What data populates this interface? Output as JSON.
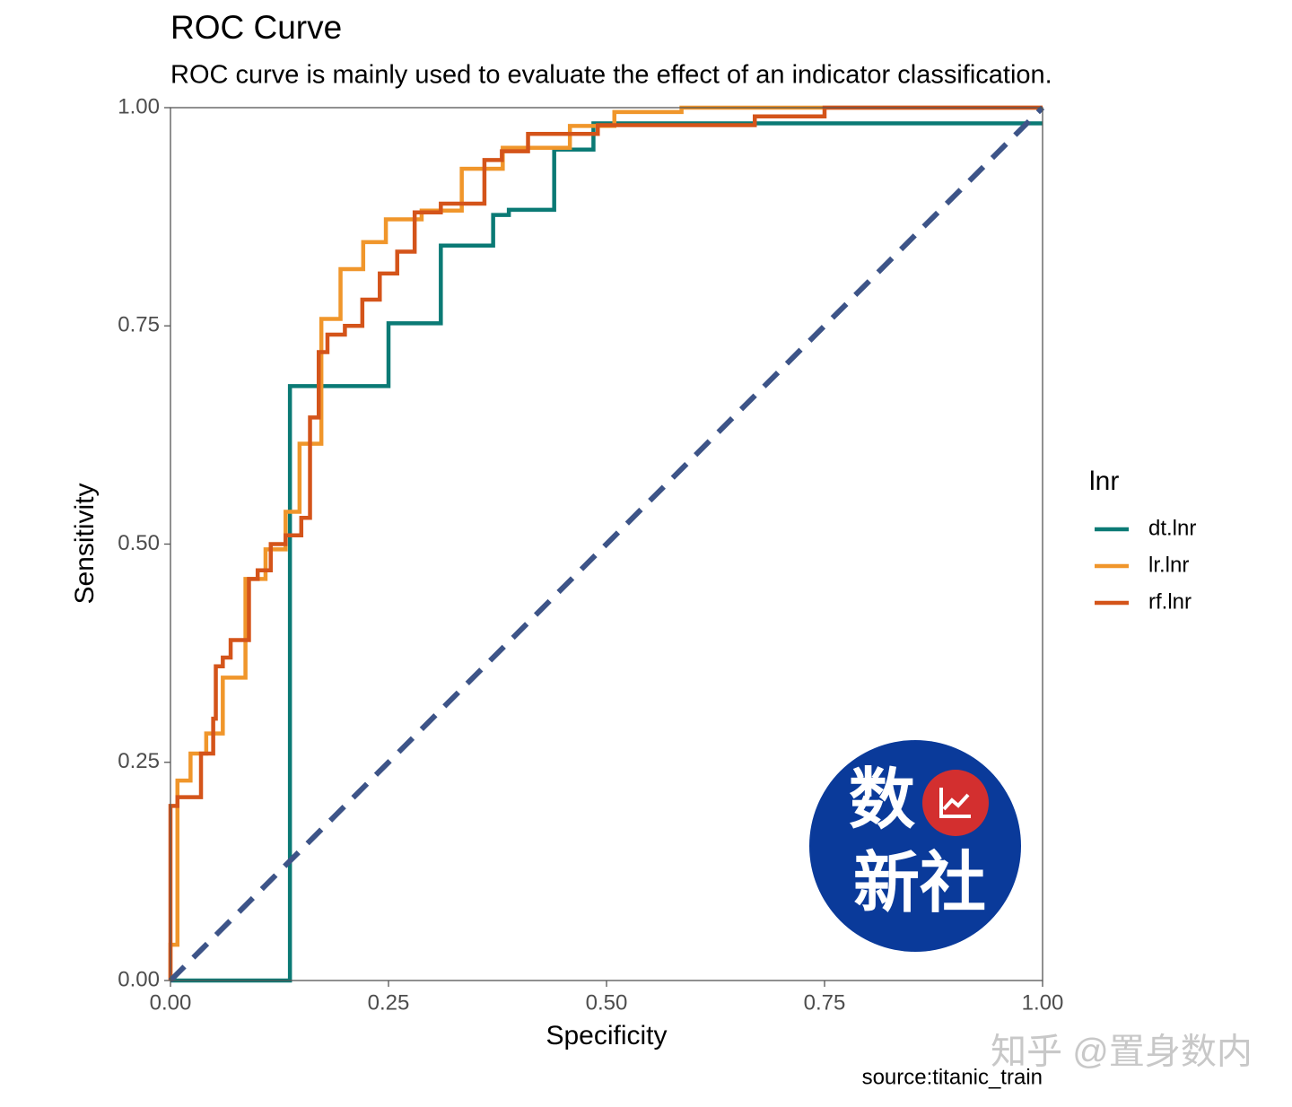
{
  "chart_data": {
    "type": "line",
    "title": "ROC Curve",
    "subtitle": "ROC curve is mainly used to evaluate the effect of an indicator classification.",
    "x_label": "Specificity",
    "y_label": "Sensitivity",
    "caption": "source:titanic_train",
    "legend_title": "lnr",
    "legend_position": "right",
    "xlim": [
      0,
      1
    ],
    "ylim": [
      0,
      1
    ],
    "xticks": [
      {
        "value": 0,
        "label": "0.00"
      },
      {
        "value": 0.25,
        "label": "0.25"
      },
      {
        "value": 0.5,
        "label": "0.50"
      },
      {
        "value": 0.75,
        "label": "0.75"
      },
      {
        "value": 1,
        "label": "1.00"
      }
    ],
    "yticks": [
      {
        "value": 0,
        "label": "0.00"
      },
      {
        "value": 0.25,
        "label": "0.25"
      },
      {
        "value": 0.5,
        "label": "0.50"
      },
      {
        "value": 0.75,
        "label": "0.75"
      },
      {
        "value": 1,
        "label": "1.00"
      }
    ],
    "series": [
      {
        "name": "dt.lnr",
        "color": "#0b7a75",
        "x": [
          0,
          0.137,
          0.137,
          0.25,
          0.25,
          0.31,
          0.31,
          0.37,
          0.37,
          0.388,
          0.388,
          0.44,
          0.44,
          0.485,
          0.485,
          1
        ],
        "values": [
          0,
          0,
          0.681,
          0.681,
          0.753,
          0.753,
          0.842,
          0.842,
          0.877,
          0.877,
          0.883,
          0.883,
          0.952,
          0.952,
          0.982,
          0.982
        ]
      },
      {
        "name": "lr.lnr",
        "color": "#f0962b",
        "x": [
          0,
          0,
          0.008,
          0.008,
          0.023,
          0.023,
          0.041,
          0.041,
          0.06,
          0.06,
          0.086,
          0.086,
          0.109,
          0.109,
          0.132,
          0.132,
          0.148,
          0.148,
          0.173,
          0.173,
          0.195,
          0.195,
          0.221,
          0.221,
          0.247,
          0.247,
          0.288,
          0.288,
          0.334,
          0.334,
          0.381,
          0.381,
          0.458,
          0.458,
          0.509,
          0.509,
          0.586,
          0.586,
          1
        ],
        "values": [
          0,
          0.041,
          0.041,
          0.229,
          0.229,
          0.26,
          0.26,
          0.283,
          0.283,
          0.347,
          0.347,
          0.46,
          0.46,
          0.494,
          0.494,
          0.537,
          0.537,
          0.615,
          0.615,
          0.758,
          0.758,
          0.815,
          0.815,
          0.846,
          0.846,
          0.872,
          0.872,
          0.882,
          0.882,
          0.93,
          0.93,
          0.954,
          0.954,
          0.979,
          0.979,
          0.995,
          0.995,
          1,
          1
        ]
      },
      {
        "name": "rf.lnr",
        "color": "#d4541a",
        "x": [
          0,
          0,
          0.008,
          0.008,
          0.035,
          0.035,
          0.049,
          0.049,
          0.052,
          0.052,
          0.06,
          0.06,
          0.069,
          0.069,
          0.09,
          0.09,
          0.1,
          0.1,
          0.115,
          0.115,
          0.132,
          0.132,
          0.15,
          0.15,
          0.16,
          0.16,
          0.17,
          0.17,
          0.18,
          0.18,
          0.2,
          0.2,
          0.22,
          0.22,
          0.24,
          0.24,
          0.26,
          0.26,
          0.28,
          0.28,
          0.31,
          0.31,
          0.36,
          0.36,
          0.38,
          0.38,
          0.41,
          0.41,
          0.49,
          0.49,
          0.67,
          0.67,
          0.75,
          0.75,
          1
        ],
        "values": [
          0,
          0.2,
          0.2,
          0.21,
          0.21,
          0.26,
          0.26,
          0.3,
          0.3,
          0.36,
          0.36,
          0.37,
          0.37,
          0.39,
          0.39,
          0.46,
          0.46,
          0.47,
          0.47,
          0.5,
          0.5,
          0.51,
          0.51,
          0.53,
          0.53,
          0.645,
          0.645,
          0.72,
          0.72,
          0.74,
          0.74,
          0.75,
          0.75,
          0.78,
          0.78,
          0.81,
          0.81,
          0.835,
          0.835,
          0.88,
          0.88,
          0.89,
          0.89,
          0.94,
          0.94,
          0.95,
          0.95,
          0.97,
          0.97,
          0.98,
          0.98,
          0.99,
          0.99,
          1,
          1
        ]
      }
    ],
    "reference_line": {
      "x": [
        0,
        1
      ],
      "values": [
        0,
        1
      ],
      "color": "#3d5488",
      "dashed": true
    },
    "logo_lines": [
      "数",
      "新社"
    ],
    "watermark": "知乎 @置身数内"
  }
}
